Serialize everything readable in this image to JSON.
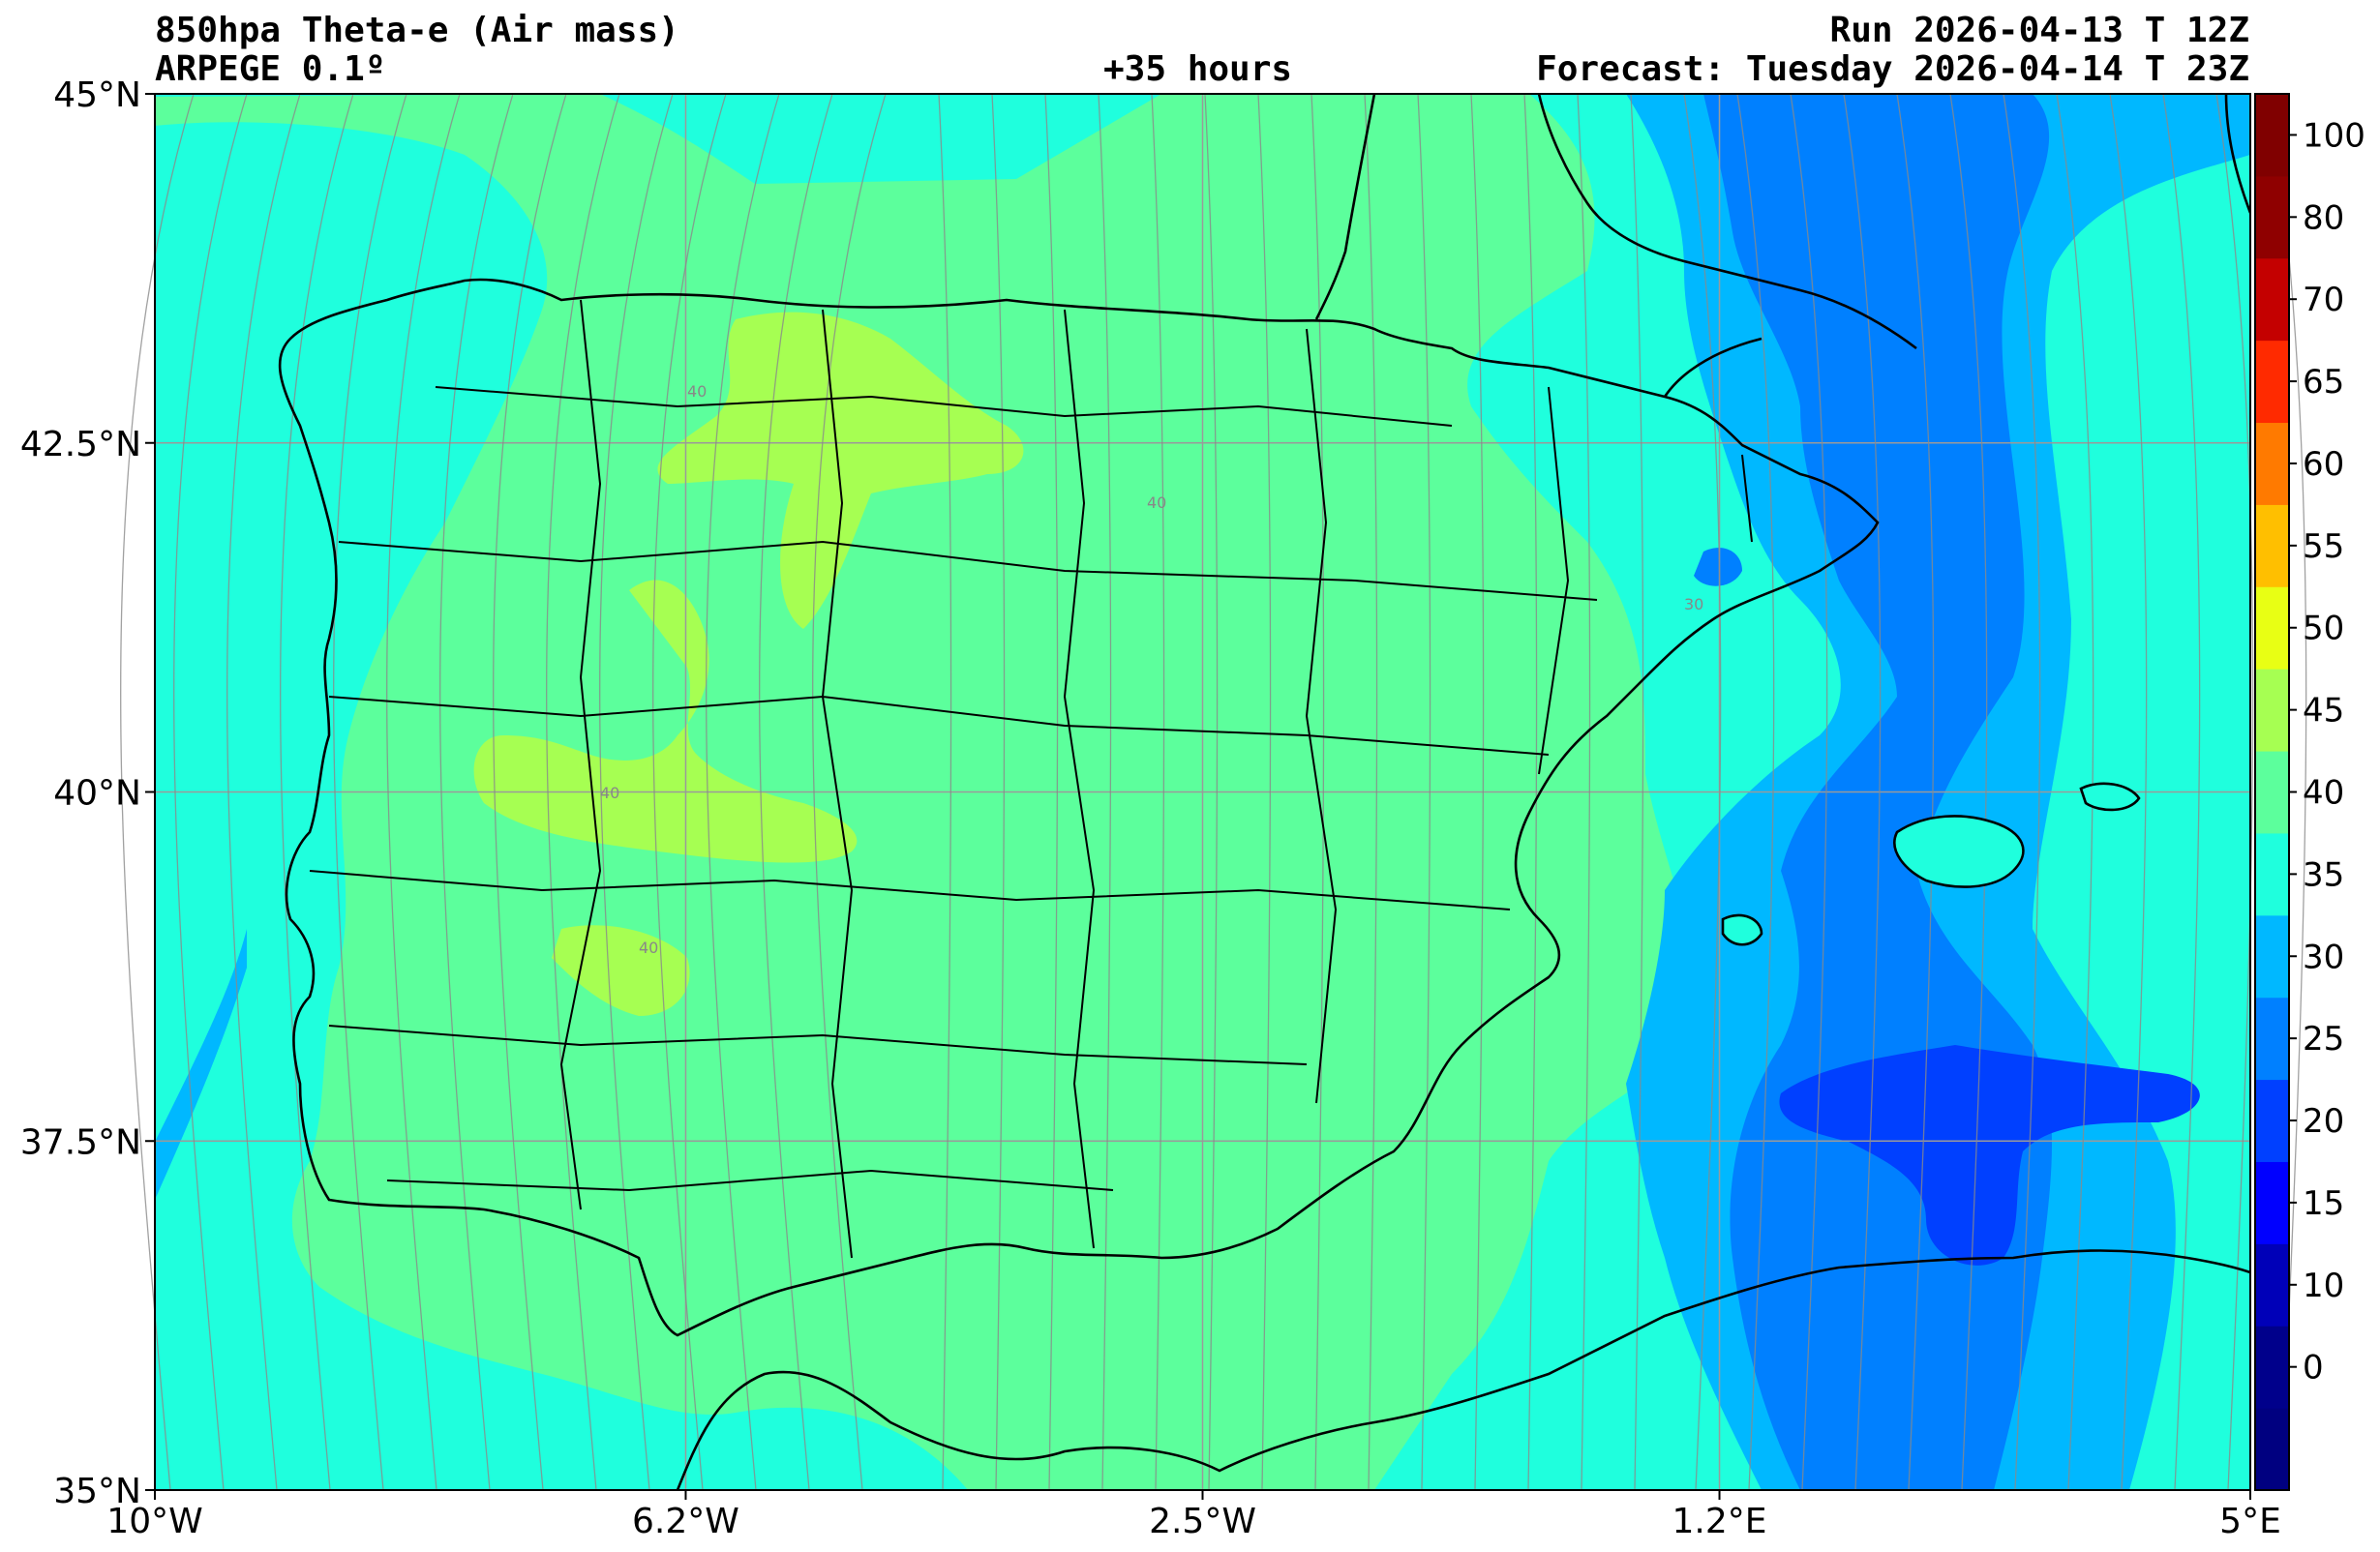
{
  "header": {
    "title": "850hpa Theta-e (Air mass)",
    "model": "ARPEGE 0.1º",
    "lead": "+35 hours",
    "run": "Run 2026-04-13 T 12Z",
    "forecast": "Forecast: Tuesday 2026-04-14 T 23Z"
  },
  "map": {
    "lon_range": [
      -10,
      5
    ],
    "lat_range": [
      35,
      45
    ],
    "x_ticks": [
      {
        "lon": -10,
        "label": "10°W"
      },
      {
        "lon": -6.2,
        "label": "6.2°W"
      },
      {
        "lon": -2.5,
        "label": "2.5°W"
      },
      {
        "lon": 1.2,
        "label": "1.2°E"
      },
      {
        "lon": 5,
        "label": "5°E"
      }
    ],
    "y_ticks": [
      {
        "lat": 45,
        "label": "45°N"
      },
      {
        "lat": 42.5,
        "label": "42.5°N"
      },
      {
        "lat": 40,
        "label": "40°N"
      },
      {
        "lat": 37.5,
        "label": "37.5°N"
      },
      {
        "lat": 35,
        "label": "35°N"
      }
    ],
    "contour_labels": [
      "40",
      "40",
      "40",
      "40",
      "30"
    ]
  },
  "colorbar": {
    "levels": [
      {
        "label": "",
        "color": "#000080"
      },
      {
        "label": "0",
        "color": "#00008b"
      },
      {
        "label": "10",
        "color": "#0000b8"
      },
      {
        "label": "15",
        "color": "#0000ff"
      },
      {
        "label": "20",
        "color": "#0040ff"
      },
      {
        "label": "25",
        "color": "#0080ff"
      },
      {
        "label": "30",
        "color": "#00b8ff"
      },
      {
        "label": "35",
        "color": "#1fffdd"
      },
      {
        "label": "40",
        "color": "#5cff9c"
      },
      {
        "label": "45",
        "color": "#a6ff52"
      },
      {
        "label": "50",
        "color": "#e8ff14"
      },
      {
        "label": "55",
        "color": "#ffbf00"
      },
      {
        "label": "60",
        "color": "#ff7a00"
      },
      {
        "label": "65",
        "color": "#ff2a00"
      },
      {
        "label": "70",
        "color": "#c40000"
      },
      {
        "label": "80",
        "color": "#8f0000"
      },
      {
        "label": "100",
        "color": "#800000"
      }
    ]
  },
  "colors": {
    "band_25": "#0080ff",
    "band_30": "#00b8ff",
    "band_35": "#1fffdd",
    "band_40": "#5cff9c",
    "band_45": "#a6ff52",
    "band_20": "#0040ff"
  }
}
